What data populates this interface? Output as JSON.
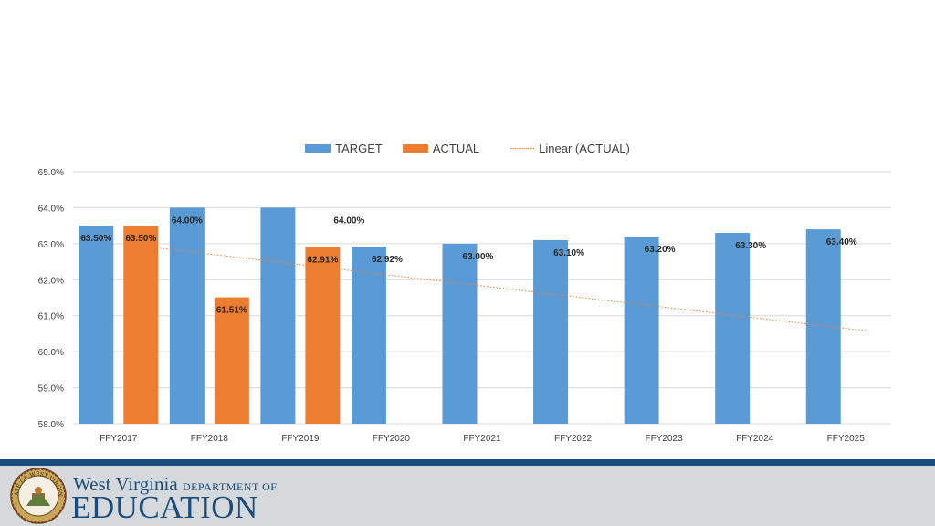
{
  "chart_data": {
    "type": "bar",
    "categories": [
      "FFY2017",
      "FFY2018",
      "FFY2019",
      "FFY2020",
      "FFY2021",
      "FFY2022",
      "FFY2023",
      "FFY2024",
      "FFY2025"
    ],
    "series": [
      {
        "name": "TARGET",
        "color": "#5B9BD5",
        "values": [
          63.5,
          64.0,
          64.0,
          62.92,
          63.0,
          63.1,
          63.2,
          63.3,
          63.4
        ],
        "labels": [
          "63.50%",
          "64.00%",
          "64.00%",
          "62.92%",
          "63.00%",
          "63.10%",
          "63.20%",
          "63.30%",
          "63.40%"
        ]
      },
      {
        "name": "ACTUAL",
        "color": "#ED7D31",
        "values": [
          63.5,
          61.51,
          62.91,
          null,
          null,
          null,
          null,
          null,
          null
        ],
        "labels": [
          "63.50%",
          "61.51%",
          "62.91%",
          "",
          "",
          "",
          "",
          "",
          ""
        ]
      }
    ],
    "trendline": {
      "name": "Linear (ACTUAL)",
      "color": "#ED7D31",
      "style": "dotted"
    },
    "ylim": [
      58,
      65
    ],
    "yticks": [
      "58.0%",
      "59.0%",
      "60.0%",
      "61.0%",
      "62.0%",
      "63.0%",
      "64.0%",
      "65.0%"
    ],
    "grid": true,
    "legend_position": "top"
  },
  "footer": {
    "logo_line1": "West Virginia",
    "logo_dept": "DEPARTMENT OF",
    "logo_line2": "EDUCATION",
    "seal_text": "STATE OF WEST VIRGINIA"
  }
}
